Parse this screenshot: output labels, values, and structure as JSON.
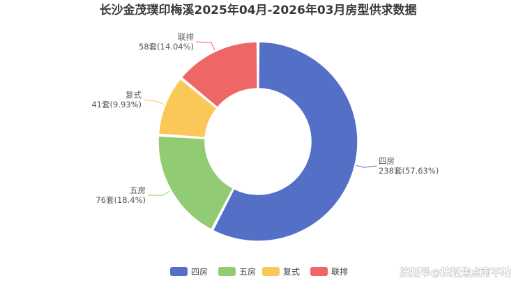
{
  "chart_data": {
    "type": "pie",
    "title": "长沙金茂璞印梅溪2025年04月-2026年03月房型供求数据",
    "unit": "套",
    "legend_position": "bottom",
    "slices": [
      {
        "name": "四房",
        "value": 238,
        "percent": "57.63%",
        "color": "#5470c6"
      },
      {
        "name": "五房",
        "value": 76,
        "percent": "18.4%",
        "color": "#91cc75"
      },
      {
        "name": "复式",
        "value": 41,
        "percent": "9.93%",
        "color": "#fac858"
      },
      {
        "name": "联排",
        "value": 58,
        "percent": "14.04%",
        "color": "#ee6666"
      }
    ]
  },
  "watermark": "搜狐号@搜狐焦点南平站"
}
